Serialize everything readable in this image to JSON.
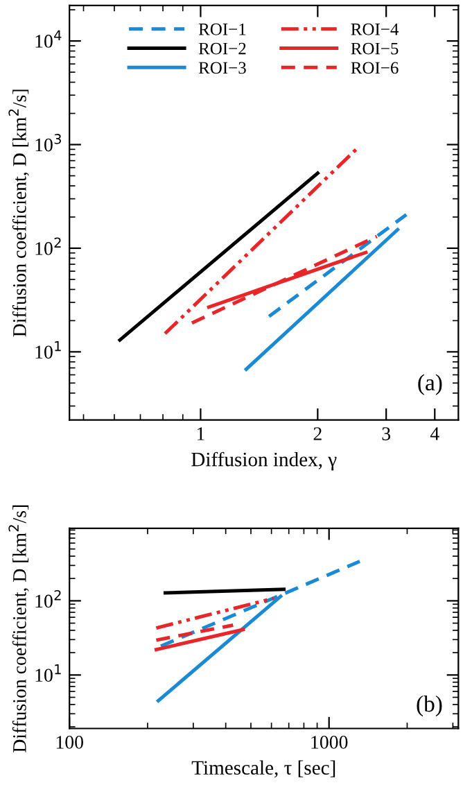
{
  "chart_data": [
    {
      "type": "line",
      "xlabel": "Diffusion index, γ",
      "ylabel": "Diffusion coefficient, D [km$^{2}$/s]",
      "log": "xy",
      "xlim": [
        0.46,
        4.6
      ],
      "ylim": [
        2.2,
        22000
      ],
      "xticks": [
        1,
        2,
        3,
        4
      ],
      "yticks": [
        {
          "value": 10,
          "label": "10$^{1}$"
        },
        {
          "value": 100,
          "label": "10$^{2}$"
        },
        {
          "value": 1000,
          "label": "10$^{3}$"
        },
        {
          "value": 10000,
          "label": "10$^{4}$"
        }
      ],
      "legend": "top",
      "annotations": [
        "(a)"
      ],
      "series": [
        {
          "name": "ROI−1",
          "color": "#1a8ad4",
          "line_style": "dashed",
          "x": [
            1.5,
            3.38
          ],
          "values": [
            22,
            211
          ]
        },
        {
          "name": "ROI−2",
          "color": "#000000",
          "line_style": "solid",
          "x": [
            0.62,
            2.0
          ],
          "values": [
            13,
            530
          ]
        },
        {
          "name": "ROI−3",
          "color": "#1a8ad4",
          "line_style": "solid",
          "x": [
            1.31,
            3.21
          ],
          "values": [
            6.8,
            151
          ]
        },
        {
          "name": "ROI−4",
          "color": "#e8262a",
          "line_style": "dashdotdot",
          "x": [
            0.81,
            2.55
          ],
          "values": [
            15,
            950
          ]
        },
        {
          "name": "ROI−5",
          "color": "#e8262a",
          "line_style": "solid",
          "x": [
            1.05,
            2.66
          ],
          "values": [
            27,
            91
          ]
        },
        {
          "name": "ROI−6",
          "color": "#e8262a",
          "line_style": "dashed",
          "x": [
            0.95,
            2.84
          ],
          "values": [
            19,
            130
          ]
        }
      ]
    },
    {
      "type": "line",
      "xlabel": "Timescale, τ [sec]",
      "ylabel": "Diffusion coefficient, D [km$^{2}$/s]",
      "log": "xy",
      "xlim": [
        100,
        3150
      ],
      "ylim": [
        1.9,
        950
      ],
      "xticks": [
        100,
        1000
      ],
      "yticks": [
        {
          "value": 10,
          "label": "10$^{1}$"
        },
        {
          "value": 100,
          "label": "10$^{2}$"
        }
      ],
      "annotations": [
        "(b)"
      ],
      "series": [
        {
          "color": "#1a8ad4",
          "line_style": "dashed",
          "x": [
            225,
            1313
          ],
          "values": [
            24.5,
            340
          ]
        },
        {
          "color": "#000000",
          "line_style": "solid",
          "x": [
            234,
            670
          ],
          "values": [
            128,
            143
          ]
        },
        {
          "color": "#1a8ad4",
          "line_style": "solid",
          "x": [
            220,
            651
          ],
          "values": [
            4.5,
            115
          ]
        },
        {
          "color": "#e8262a",
          "line_style": "dashdotdot",
          "x": [
            216,
            613
          ],
          "values": [
            43,
            108
          ]
        },
        {
          "color": "#e8262a",
          "line_style": "solid",
          "x": [
            216,
            467
          ],
          "values": [
            22,
            41
          ]
        },
        {
          "color": "#e8262a",
          "line_style": "dashed",
          "x": [
            216,
            427
          ],
          "values": [
            29.5,
            47
          ]
        }
      ]
    }
  ]
}
